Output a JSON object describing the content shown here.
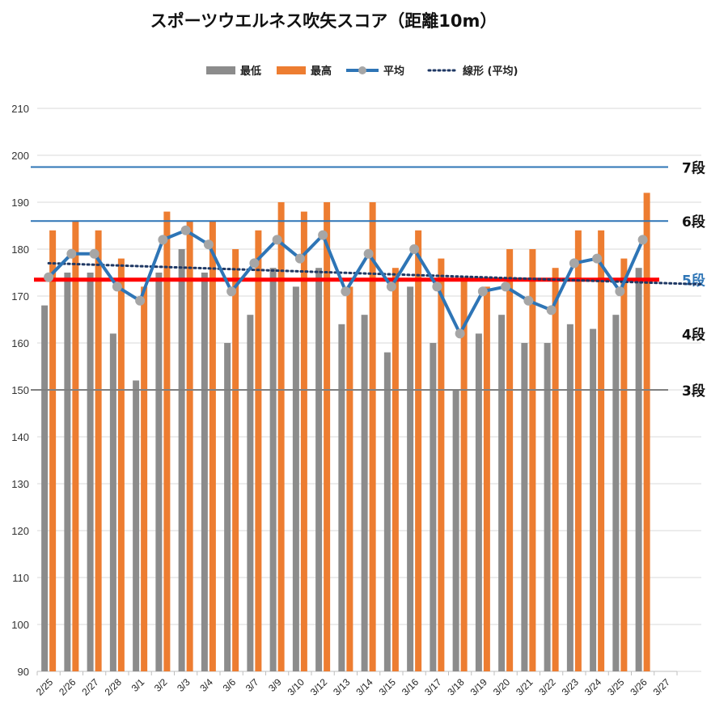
{
  "chart_data": {
    "type": "bar",
    "title": "スポーツウエルネス吹矢スコア（距離10m）",
    "legend": [
      {
        "key": "min",
        "label": "最低",
        "color": "#8c8c8c",
        "marker": "box"
      },
      {
        "key": "max",
        "label": "最高",
        "color": "#ed7d31",
        "marker": "box"
      },
      {
        "key": "avg",
        "label": "平均",
        "color": "#2e75b6",
        "marker": "line-dot"
      },
      {
        "key": "trend",
        "label": "線形 (平均)",
        "color": "#1f3864",
        "marker": "dotted"
      }
    ],
    "legend_position": "top",
    "ylim": [
      90,
      210
    ],
    "yticks": [
      "90",
      "100",
      "110",
      "120",
      "130",
      "140",
      "150",
      "160",
      "170",
      "180",
      "190",
      "200",
      "210"
    ],
    "grid": true,
    "categories": [
      "2/25",
      "2/26",
      "2/27",
      "2/28",
      "3/1",
      "3/2",
      "3/3",
      "3/4",
      "3/6",
      "3/7",
      "3/9",
      "3/10",
      "3/12",
      "3/13",
      "3/14",
      "3/15",
      "3/16",
      "3/17",
      "3/18",
      "3/19",
      "3/20",
      "3/21",
      "3/22",
      "3/23",
      "3/24",
      "3/25",
      "3/26",
      "3/27"
    ],
    "series": [
      {
        "name": "最低",
        "type": "bar",
        "color": "#8c8c8c",
        "values": [
          168,
          175,
          175,
          162,
          152,
          175,
          180,
          175,
          160,
          166,
          176,
          172,
          176,
          164,
          166,
          158,
          172,
          160,
          150,
          162,
          166,
          160,
          160,
          164,
          163,
          166,
          176,
          null
        ]
      },
      {
        "name": "最高",
        "type": "bar",
        "color": "#ed7d31",
        "values": [
          184,
          186,
          184,
          178,
          172,
          188,
          186,
          186,
          180,
          184,
          190,
          188,
          190,
          172,
          190,
          176,
          184,
          178,
          174,
          172,
          180,
          180,
          176,
          184,
          184,
          178,
          192,
          null
        ]
      },
      {
        "name": "平均",
        "type": "line",
        "color": "#2e75b6",
        "values": [
          174,
          179,
          179,
          172,
          169,
          182,
          184,
          181,
          171,
          177,
          182,
          178,
          183,
          171,
          179,
          172,
          180,
          172,
          162,
          171,
          172,
          169,
          167,
          177,
          178,
          171,
          182,
          null
        ]
      },
      {
        "name": "線形 (平均)",
        "type": "trendline",
        "color": "#1f3864",
        "from": 177,
        "to": 172.5
      }
    ],
    "reference_lines": [
      {
        "label": "7段",
        "value": 197.5,
        "color": "#2e75b6",
        "label_color": "#111111",
        "width": 2
      },
      {
        "label": "6段",
        "value": 186,
        "color": "#2e75b6",
        "label_color": "#111111",
        "width": 2
      },
      {
        "label": "5段",
        "value": 173.5,
        "color": "#ff0000",
        "label_color": "#2e75b6",
        "width": 5
      },
      {
        "label": "4段",
        "value": 162,
        "color": "#ffffff",
        "label_color": "#111111",
        "width": 0
      },
      {
        "label": "3段",
        "value": 150,
        "color": "#808080",
        "label_color": "#111111",
        "width": 2
      }
    ]
  }
}
